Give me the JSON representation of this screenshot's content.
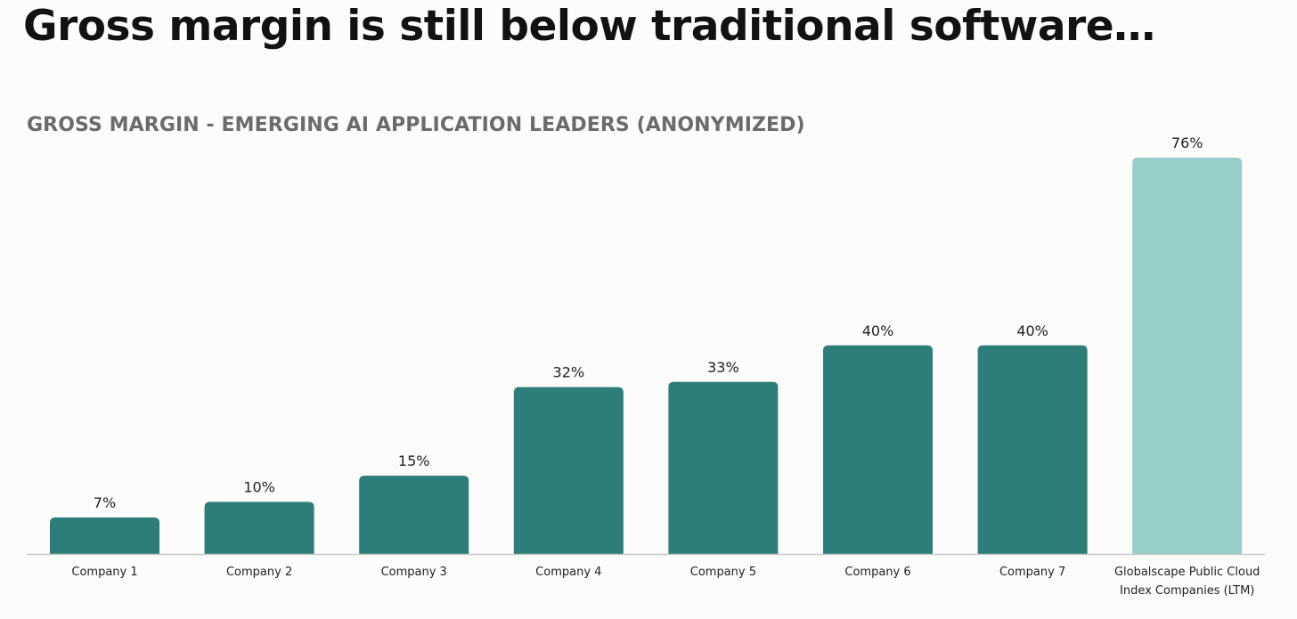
{
  "headline": "Gross margin is still below traditional software…",
  "chart_data": {
    "type": "bar",
    "title": "GROSS MARGIN - EMERGING AI APPLICATION LEADERS (ANONYMIZED)",
    "xlabel": "",
    "ylabel": "",
    "ylim": [
      0,
      76
    ],
    "grid": false,
    "categories": [
      "Company 1",
      "Company 2",
      "Company 3",
      "Company 4",
      "Company 5",
      "Company 6",
      "Company 7",
      "Globalscape Public Cloud\nIndex Companies (LTM)"
    ],
    "values": [
      7,
      10,
      15,
      32,
      33,
      40,
      40,
      76
    ],
    "value_labels": [
      "7%",
      "10%",
      "15%",
      "32%",
      "33%",
      "40%",
      "40%",
      "76%"
    ],
    "bar_colors": [
      "#2d7d79",
      "#2d7d79",
      "#2d7d79",
      "#2d7d79",
      "#2d7d79",
      "#2d7d79",
      "#2d7d79",
      "#98cec9"
    ],
    "axis_color": "#c8c8c8"
  }
}
